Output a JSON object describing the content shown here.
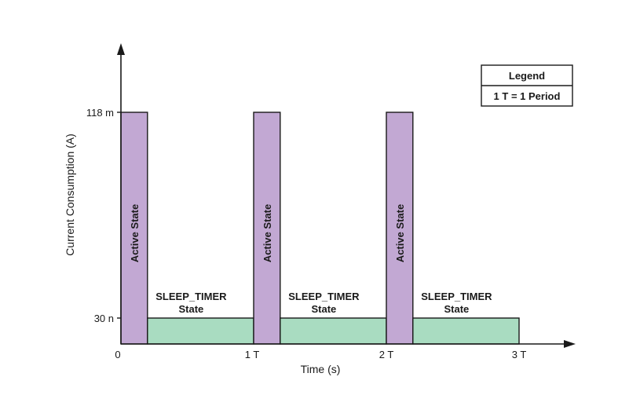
{
  "chart_data": {
    "type": "bar",
    "xlabel": "Time (s)",
    "ylabel": "Current Consumption (A)",
    "x_ticks": [
      "0",
      "1 T",
      "2 T",
      "3 T"
    ],
    "y_ticks": [
      "30 n",
      "118 m"
    ],
    "segments": [
      {
        "state": "active",
        "start": 0.0,
        "end": 0.2,
        "level": "118 m",
        "label": "Active State"
      },
      {
        "state": "sleep",
        "start": 0.2,
        "end": 1.0,
        "level": "30 n",
        "label_line1": "SLEEP_TIMER",
        "label_line2": "State"
      },
      {
        "state": "active",
        "start": 1.0,
        "end": 1.2,
        "level": "118 m",
        "label": "Active State"
      },
      {
        "state": "sleep",
        "start": 1.2,
        "end": 2.0,
        "level": "30 n",
        "label_line1": "SLEEP_TIMER",
        "label_line2": "State"
      },
      {
        "state": "active",
        "start": 2.0,
        "end": 2.2,
        "level": "118 m",
        "label": "Active State"
      },
      {
        "state": "sleep",
        "start": 2.2,
        "end": 3.0,
        "level": "30 n",
        "label_line1": "SLEEP_TIMER",
        "label_line2": "State"
      }
    ],
    "colors": {
      "active": "#c2a8d3",
      "sleep": "#a9dcc1",
      "outline": "#1a1a1a"
    },
    "legend": {
      "title": "Legend",
      "entry": "1 T = 1 Period",
      "placement": "top-right"
    }
  }
}
